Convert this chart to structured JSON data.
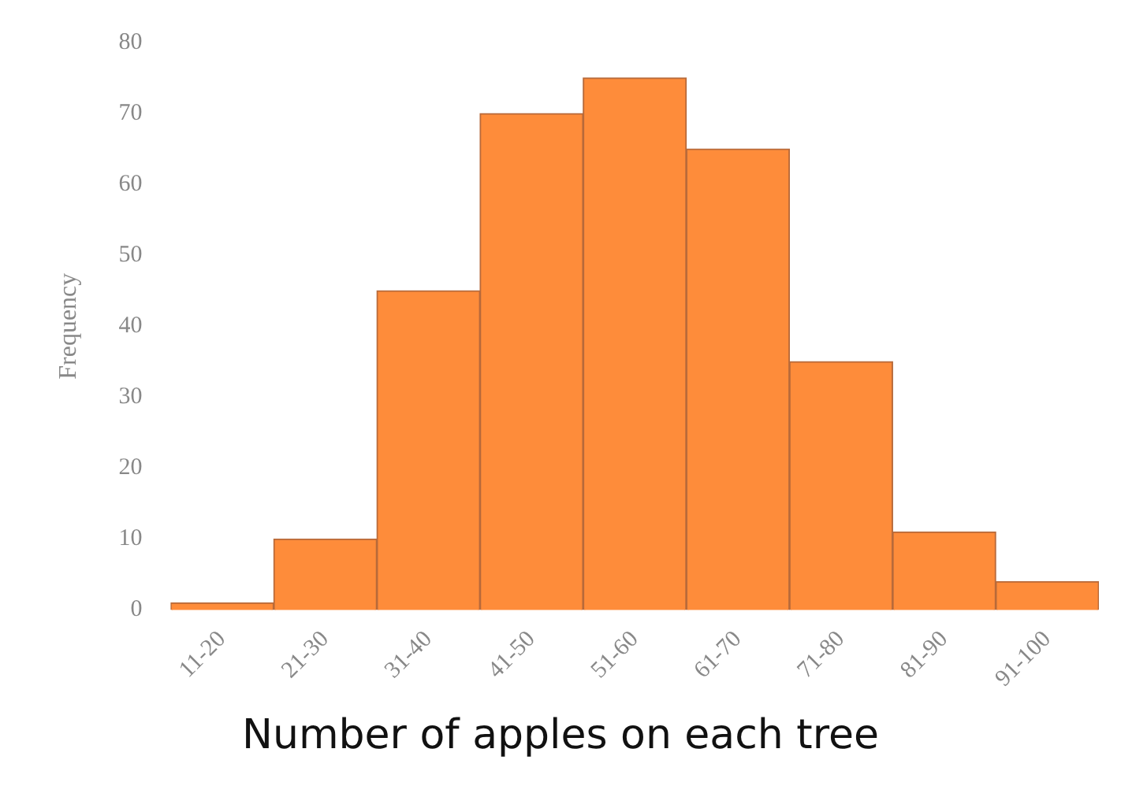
{
  "chart_data": {
    "type": "bar",
    "xlabel": "Number of apples on each tree",
    "ylabel": "Frequency",
    "categories": [
      "11-20",
      "21-30",
      "31-40",
      "41-50",
      "51-60",
      "61-70",
      "71-80",
      "81-90",
      "91-100"
    ],
    "values": [
      1,
      10,
      45,
      70,
      75,
      65,
      35,
      11,
      4
    ],
    "color": "#fe8c3a",
    "ylim": [
      0,
      80
    ],
    "yticks": [
      0,
      10,
      20,
      30,
      40,
      50,
      60,
      70,
      80
    ],
    "grid": false
  }
}
